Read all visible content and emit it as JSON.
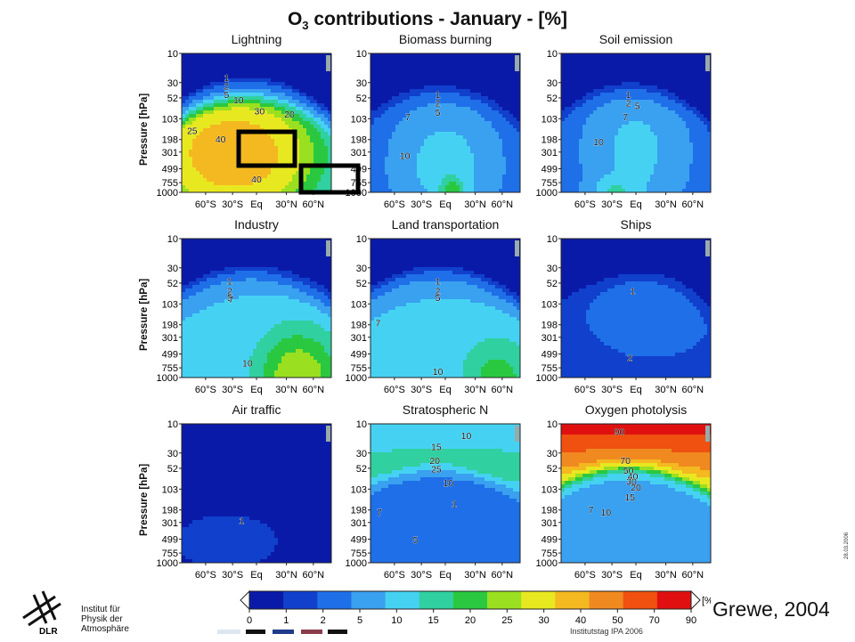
{
  "title": {
    "prefix": "O",
    "sub": "3",
    "rest": " contributions - January - [%]"
  },
  "y_axis_label": "Pressure [hPa]",
  "x_tick_labels": [
    "60°S",
    "30°S",
    "Eq",
    "30°N",
    "60°N"
  ],
  "y_tick_labels": [
    "10",
    "30",
    "52",
    "103",
    "198",
    "301",
    "499",
    "755",
    "1000"
  ],
  "colorbar": {
    "ticks": [
      "0",
      "1",
      "2",
      "5",
      "10",
      "15",
      "20",
      "25",
      "30",
      "40",
      "50",
      "70",
      "90"
    ],
    "unit": "[%]",
    "colors": [
      "#0a1aa8",
      "#1040cc",
      "#1f6fe8",
      "#3aa0f0",
      "#45d2f2",
      "#30d0a0",
      "#2ac840",
      "#9ae020",
      "#e8e820",
      "#f4b820",
      "#f08a20",
      "#f05010",
      "#e01010"
    ]
  },
  "colormap": {
    "levels": [
      0,
      1,
      2,
      5,
      10,
      15,
      20,
      25,
      30,
      40,
      50,
      70,
      90
    ]
  },
  "credit": "Grewe, 2004",
  "date_text": "28.03.2006",
  "institute": {
    "line1": "Institut für",
    "line2": "Physik der",
    "line3": "Atmosphäre",
    "logo_text": "DLR"
  },
  "footer": "Institutstag IPA 2006",
  "chart_data": [
    {
      "type": "heatmap",
      "title": "Lightning",
      "contour_labels": [
        "1",
        "2",
        "5",
        "10",
        "20",
        "25",
        "30",
        "40",
        "40"
      ],
      "max_percent": 40
    },
    {
      "type": "heatmap",
      "title": "Biomass burning",
      "contour_labels": [
        "1",
        "2",
        "5",
        "7",
        "10"
      ],
      "max_percent": 20
    },
    {
      "type": "heatmap",
      "title": "Soil emission",
      "contour_labels": [
        "1",
        "2",
        "5",
        "7",
        "10"
      ],
      "max_percent": 15
    },
    {
      "type": "heatmap",
      "title": "Industry",
      "contour_labels": [
        "1",
        "2",
        "5",
        "7",
        "10"
      ],
      "max_percent": 25
    },
    {
      "type": "heatmap",
      "title": "Land transportation",
      "contour_labels": [
        "1",
        "2",
        "5",
        "7",
        "10"
      ],
      "max_percent": 20
    },
    {
      "type": "heatmap",
      "title": "Ships",
      "contour_labels": [
        "1",
        "2"
      ],
      "max_percent": 5
    },
    {
      "type": "heatmap",
      "title": "Air traffic",
      "contour_labels": [
        "1"
      ],
      "max_percent": 2
    },
    {
      "type": "heatmap",
      "title": "Stratospheric N",
      "contour_labels": [
        "10",
        "15",
        "20",
        "25",
        "10",
        "7",
        "5",
        "1"
      ],
      "max_percent": 30
    },
    {
      "type": "heatmap",
      "title": "Oxygen photolysis",
      "contour_labels": [
        "90",
        "70",
        "50",
        "40",
        "30",
        "20",
        "15",
        "10",
        "7"
      ],
      "max_percent": 90
    }
  ]
}
